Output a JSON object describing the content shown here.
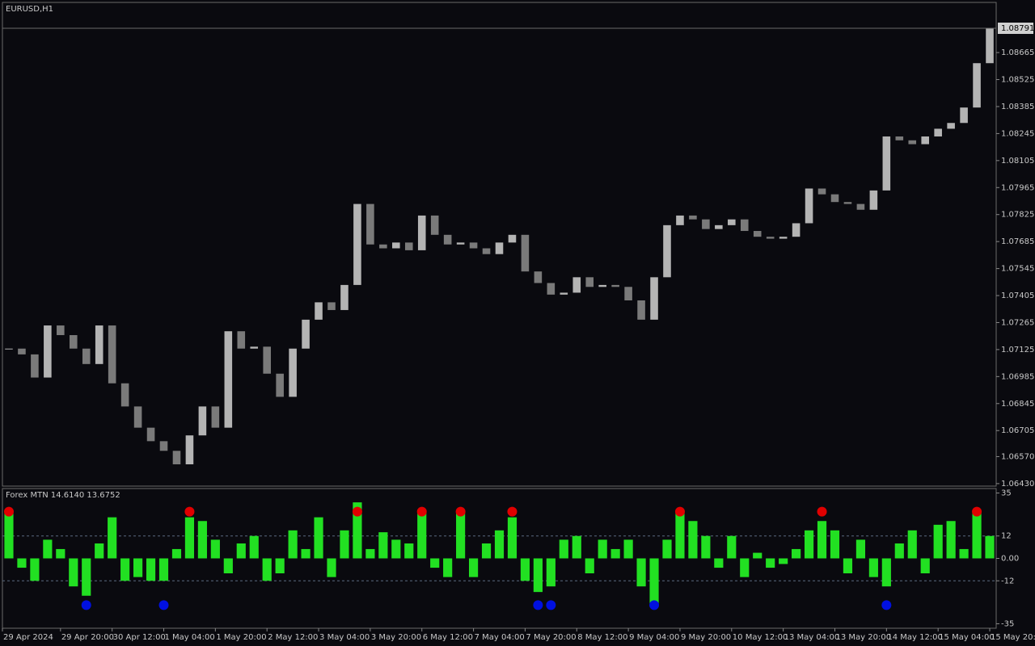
{
  "symbol": "EURUSD,H1",
  "chart_data": [
    {
      "type": "candlestick",
      "close": [
        1.0713,
        1.071,
        1.0698,
        1.0725,
        1.072,
        1.0713,
        1.0705,
        1.0725,
        1.0695,
        1.0683,
        1.0672,
        1.0665,
        1.066,
        1.0653,
        1.0668,
        1.0683,
        1.0672,
        1.0722,
        1.0713,
        1.0714,
        1.07,
        1.0688,
        1.0713,
        1.0728,
        1.0737,
        1.0733,
        1.0746,
        1.0788,
        1.0767,
        1.0765,
        1.0768,
        1.0764,
        1.0782,
        1.0772,
        1.0767,
        1.0768,
        1.0765,
        1.0762,
        1.0768,
        1.0772,
        1.0753,
        1.0747,
        1.0741,
        1.0742,
        1.075,
        1.0745,
        1.0746,
        1.0745,
        1.0738,
        1.0728,
        1.075,
        1.0777,
        1.0782,
        1.078,
        1.0775,
        1.0777,
        1.078,
        1.0774,
        1.0771,
        1.077,
        1.0771,
        1.0778,
        1.0796,
        1.0793,
        1.0789,
        1.0788,
        1.0785,
        1.0795,
        1.0823,
        1.0821,
        1.0819,
        1.0823,
        1.0827,
        1.083,
        1.0838,
        1.0861,
        1.0879
      ],
      "up_color": "#b4b4b4",
      "down_color": "#7a7a7a",
      "last_price": 1.08791,
      "ylim": [
        1.06417,
        1.08925
      ],
      "yticks": [
        {
          "value": 1.0643,
          "label": "1.06430"
        },
        {
          "value": 1.0657,
          "label": "1.06570"
        },
        1.06705,
        1.06845,
        1.06985,
        1.07125,
        1.07265,
        1.07405,
        1.07545,
        1.07685,
        1.07825,
        1.07965,
        1.08105,
        1.08245,
        1.08385,
        1.08525,
        1.08665
      ],
      "xlim": [
        -0.5,
        76.5
      ],
      "xticks": [
        {
          "value": 0,
          "label": "29 Apr 2024"
        },
        {
          "value": 4,
          "label": "29 Apr 20:00"
        },
        {
          "value": 8,
          "label": "30 Apr 12:00"
        },
        {
          "value": 12,
          "label": "1 May 04:00"
        },
        {
          "value": 16,
          "label": "1 May 20:00"
        },
        {
          "value": 20,
          "label": "2 May 12:00"
        },
        {
          "value": 24,
          "label": "3 May 04:00"
        },
        {
          "value": 28,
          "label": "3 May 20:00"
        },
        {
          "value": 32,
          "label": "6 May 12:00"
        },
        {
          "value": 36,
          "label": "7 May 04:00"
        },
        {
          "value": 40,
          "label": "7 May 20:00"
        },
        {
          "value": 44,
          "label": "8 May 12:00"
        },
        {
          "value": 48,
          "label": "9 May 04:00"
        },
        {
          "value": 52,
          "label": "9 May 20:00"
        },
        {
          "value": 56,
          "label": "10 May 12:00"
        },
        {
          "value": 60,
          "label": "13 May 04:00"
        },
        {
          "value": 64,
          "label": "13 May 20:00"
        },
        {
          "value": 68,
          "label": "14 May 12:00"
        },
        {
          "value": 72,
          "label": "15 May 04:00"
        },
        {
          "value": 76,
          "label": "15 May 20:00"
        }
      ]
    },
    {
      "type": "histogram-indicator",
      "title": "Forex MTN 14.6140 13.6752",
      "values": [
        25,
        -5,
        -12,
        10,
        5,
        -15,
        -20,
        8,
        22,
        -12,
        -10,
        -12,
        -12,
        5,
        22,
        20,
        10,
        -8,
        8,
        12,
        -12,
        -8,
        15,
        5,
        22,
        -10,
        15,
        30,
        5,
        14,
        10,
        8,
        26,
        -5,
        -10,
        25,
        -10,
        8,
        15,
        22,
        -12,
        -18,
        -15,
        10,
        12,
        -8,
        10,
        5,
        10,
        -15,
        -25,
        10,
        25,
        20,
        12,
        -5,
        12,
        -10,
        3,
        -5,
        -3,
        5,
        15,
        20,
        15,
        -8,
        10,
        -10,
        -15,
        8,
        15,
        -8,
        18,
        20,
        5,
        25,
        12
      ],
      "color": "#22e022",
      "ylim": [
        -37.4,
        37.4
      ],
      "yticks": [
        35,
        12,
        {
          "value": 0,
          "label": "0.00"
        },
        -12,
        -35
      ],
      "levels": [
        12,
        -12
      ],
      "signals": [
        {
          "color": "#e00000",
          "level": 25,
          "x": [
            0,
            14,
            27,
            32,
            35,
            39,
            52,
            63,
            75
          ]
        },
        {
          "color": "#0010e0",
          "level": -25,
          "x": [
            6,
            12,
            41,
            42,
            50,
            68
          ]
        }
      ]
    }
  ]
}
